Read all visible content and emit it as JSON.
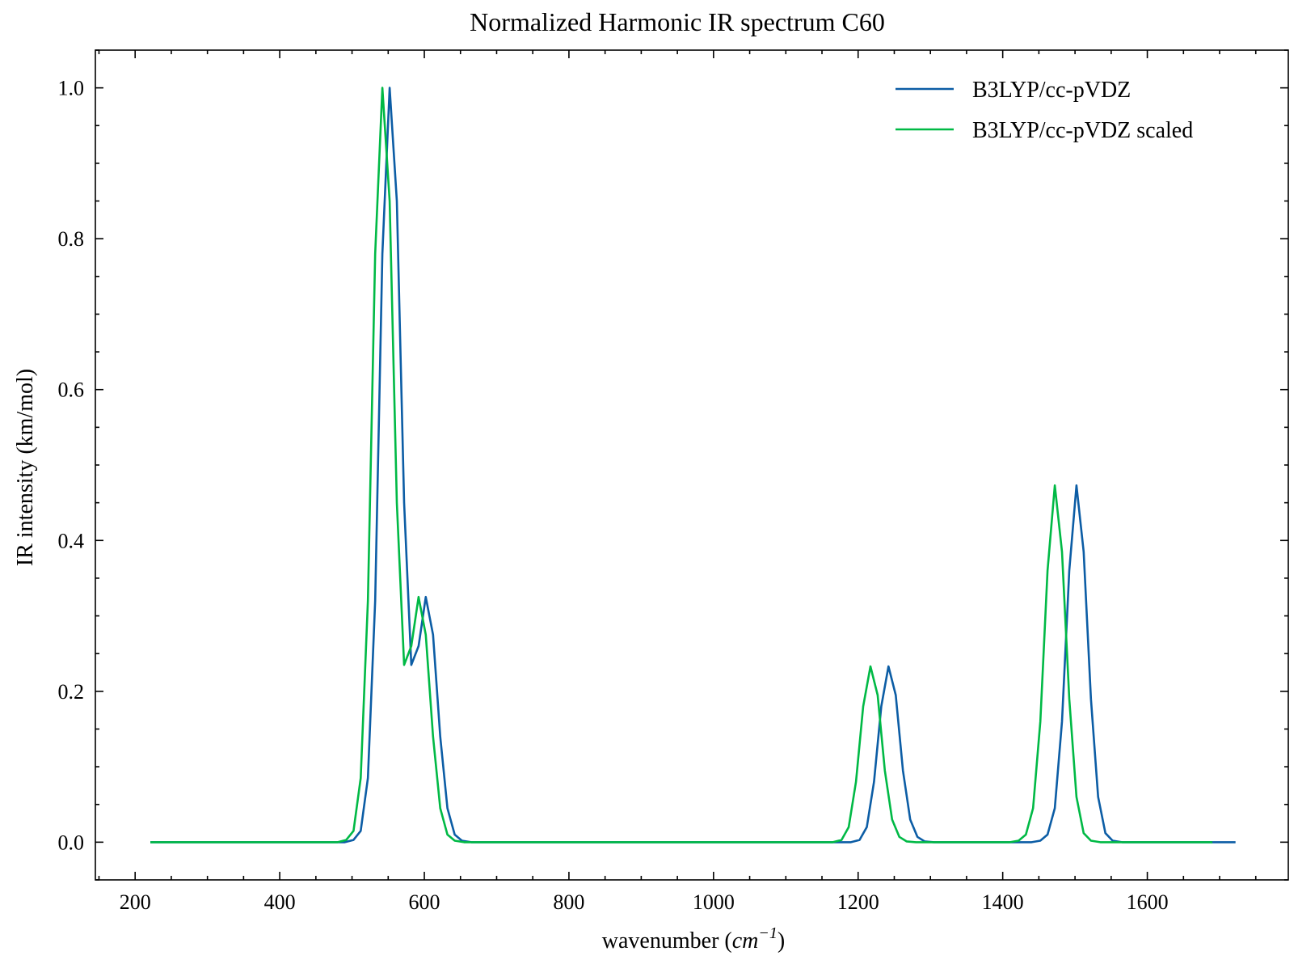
{
  "chart_data": {
    "type": "line",
    "title": "Normalized Harmonic IR spectrum C60",
    "xlabel_text": "wavenumber (",
    "xlabel_unit": "cm",
    "xlabel_exp": "−1",
    "xlabel_close": ")",
    "ylabel": "IR intensity (km/mol)",
    "xlim": [
      145,
      1795
    ],
    "ylim": [
      -0.05,
      1.05
    ],
    "xticks": [
      200,
      400,
      600,
      800,
      1000,
      1200,
      1400,
      1600
    ],
    "xtick_labels": [
      "200",
      "400",
      "600",
      "800",
      "1000",
      "1200",
      "1400",
      "1600"
    ],
    "yticks": [
      0.0,
      0.2,
      0.4,
      0.6,
      0.8,
      1.0
    ],
    "ytick_labels": [
      "0.0",
      "0.2",
      "0.4",
      "0.6",
      "0.8",
      "1.0"
    ],
    "grid": false,
    "legend_position": "top-right",
    "series": [
      {
        "name": "B3LYP/cc-pVDZ",
        "color": "#0C5DA5",
        "points": [
          [
            221,
            0.0
          ],
          [
            490,
            0.0
          ],
          [
            502,
            0.003
          ],
          [
            512,
            0.015
          ],
          [
            522,
            0.085
          ],
          [
            532,
            0.32
          ],
          [
            542,
            0.78
          ],
          [
            552,
            1.0
          ],
          [
            562,
            0.85
          ],
          [
            572,
            0.45
          ],
          [
            582,
            0.235
          ],
          [
            592,
            0.26
          ],
          [
            602,
            0.325
          ],
          [
            612,
            0.275
          ],
          [
            622,
            0.14
          ],
          [
            632,
            0.045
          ],
          [
            642,
            0.01
          ],
          [
            652,
            0.002
          ],
          [
            665,
            0.0
          ],
          [
            1190,
            0.0
          ],
          [
            1202,
            0.003
          ],
          [
            1212,
            0.02
          ],
          [
            1222,
            0.08
          ],
          [
            1232,
            0.18
          ],
          [
            1242,
            0.233
          ],
          [
            1252,
            0.195
          ],
          [
            1262,
            0.095
          ],
          [
            1272,
            0.03
          ],
          [
            1282,
            0.007
          ],
          [
            1292,
            0.001
          ],
          [
            1305,
            0.0
          ],
          [
            1440,
            0.0
          ],
          [
            1452,
            0.002
          ],
          [
            1462,
            0.01
          ],
          [
            1472,
            0.045
          ],
          [
            1482,
            0.16
          ],
          [
            1492,
            0.36
          ],
          [
            1502,
            0.473
          ],
          [
            1512,
            0.385
          ],
          [
            1522,
            0.19
          ],
          [
            1532,
            0.06
          ],
          [
            1542,
            0.012
          ],
          [
            1552,
            0.002
          ],
          [
            1565,
            0.0
          ],
          [
            1722,
            0.0
          ]
        ]
      },
      {
        "name": "B3LYP/cc-pVDZ scaled",
        "color": "#00B945",
        "points": [
          [
            221,
            0.0
          ],
          [
            480,
            0.0
          ],
          [
            492,
            0.003
          ],
          [
            502,
            0.015
          ],
          [
            512,
            0.085
          ],
          [
            522,
            0.32
          ],
          [
            532,
            0.78
          ],
          [
            542,
            1.0
          ],
          [
            552,
            0.85
          ],
          [
            562,
            0.45
          ],
          [
            572,
            0.235
          ],
          [
            582,
            0.26
          ],
          [
            592,
            0.325
          ],
          [
            602,
            0.275
          ],
          [
            612,
            0.14
          ],
          [
            622,
            0.045
          ],
          [
            632,
            0.01
          ],
          [
            642,
            0.002
          ],
          [
            655,
            0.0
          ],
          [
            1165,
            0.0
          ],
          [
            1177,
            0.003
          ],
          [
            1187,
            0.02
          ],
          [
            1197,
            0.08
          ],
          [
            1207,
            0.18
          ],
          [
            1217,
            0.233
          ],
          [
            1227,
            0.195
          ],
          [
            1237,
            0.095
          ],
          [
            1247,
            0.03
          ],
          [
            1257,
            0.007
          ],
          [
            1267,
            0.001
          ],
          [
            1280,
            0.0
          ],
          [
            1410,
            0.0
          ],
          [
            1422,
            0.002
          ],
          [
            1432,
            0.01
          ],
          [
            1442,
            0.045
          ],
          [
            1452,
            0.16
          ],
          [
            1462,
            0.36
          ],
          [
            1472,
            0.473
          ],
          [
            1482,
            0.385
          ],
          [
            1492,
            0.19
          ],
          [
            1502,
            0.06
          ],
          [
            1512,
            0.012
          ],
          [
            1522,
            0.002
          ],
          [
            1535,
            0.0
          ],
          [
            1690,
            0.0
          ]
        ]
      }
    ]
  }
}
